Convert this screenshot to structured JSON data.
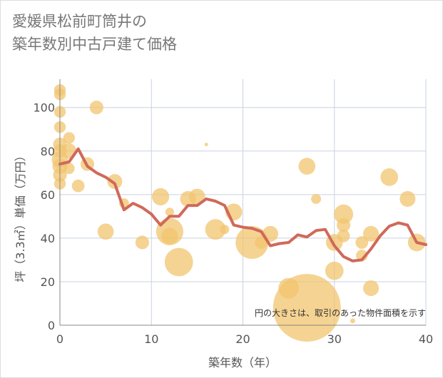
{
  "title_lines": [
    "愛媛県松前町筒井の",
    "築年数別中古戸建て価格"
  ],
  "chart_data": {
    "type": "scatter",
    "title": "愛媛県松前町筒井の築年数別中古戸建て価格",
    "xlabel": "築年数（年）",
    "ylabel": "坪（3.3㎡）単価（万円）",
    "xlim": [
      0,
      40
    ],
    "ylim": [
      0,
      113
    ],
    "x_ticks": [
      0,
      10,
      20,
      30,
      40
    ],
    "y_ticks": [
      0,
      20,
      40,
      60,
      80,
      100
    ],
    "grid": true,
    "annotation": "円の大きさは、取引のあった物件面積を示す",
    "colors": {
      "bubble": "#f2c46d",
      "line": "#d0695a",
      "grid": "#c8d3e0",
      "axis_text": "#555555"
    },
    "bubbles": [
      {
        "x": 0,
        "y": 108,
        "size": 110
      },
      {
        "x": 0,
        "y": 106,
        "size": 110
      },
      {
        "x": 0,
        "y": 98,
        "size": 110
      },
      {
        "x": 0,
        "y": 91,
        "size": 110
      },
      {
        "x": 0,
        "y": 83,
        "size": 150
      },
      {
        "x": 0,
        "y": 80,
        "size": 150
      },
      {
        "x": 0,
        "y": 76,
        "size": 220
      },
      {
        "x": 0,
        "y": 73,
        "size": 180
      },
      {
        "x": 0,
        "y": 69,
        "size": 150
      },
      {
        "x": 0,
        "y": 65,
        "size": 110
      },
      {
        "x": 1,
        "y": 86,
        "size": 110
      },
      {
        "x": 1,
        "y": 80,
        "size": 180
      },
      {
        "x": 1,
        "y": 72,
        "size": 100
      },
      {
        "x": 2,
        "y": 64,
        "size": 130
      },
      {
        "x": 3,
        "y": 74,
        "size": 150
      },
      {
        "x": 4,
        "y": 100,
        "size": 150
      },
      {
        "x": 5,
        "y": 43,
        "size": 210
      },
      {
        "x": 6,
        "y": 66,
        "size": 180
      },
      {
        "x": 7,
        "y": 56,
        "size": 80
      },
      {
        "x": 9,
        "y": 38,
        "size": 150
      },
      {
        "x": 11,
        "y": 59,
        "size": 240
      },
      {
        "x": 12,
        "y": 52,
        "size": 60
      },
      {
        "x": 12,
        "y": 43,
        "size": 600
      },
      {
        "x": 12,
        "y": 41,
        "size": 220
      },
      {
        "x": 13,
        "y": 29,
        "size": 650
      },
      {
        "x": 14,
        "y": 58,
        "size": 200
      },
      {
        "x": 15,
        "y": 59,
        "size": 210
      },
      {
        "x": 16,
        "y": 83,
        "size": 10
      },
      {
        "x": 17,
        "y": 44,
        "size": 340
      },
      {
        "x": 18,
        "y": 44,
        "size": 70
      },
      {
        "x": 19,
        "y": 52,
        "size": 230
      },
      {
        "x": 21,
        "y": 38,
        "size": 870
      },
      {
        "x": 22,
        "y": 38,
        "size": 130
      },
      {
        "x": 23,
        "y": 42,
        "size": 200
      },
      {
        "x": 25,
        "y": 17,
        "size": 340
      },
      {
        "x": 27,
        "y": 8,
        "size": 3700
      },
      {
        "x": 27,
        "y": 73,
        "size": 230
      },
      {
        "x": 28,
        "y": 58,
        "size": 80
      },
      {
        "x": 30,
        "y": 38,
        "size": 230
      },
      {
        "x": 30,
        "y": 25,
        "size": 270
      },
      {
        "x": 31,
        "y": 51,
        "size": 300
      },
      {
        "x": 31,
        "y": 46,
        "size": 150
      },
      {
        "x": 31,
        "y": 41,
        "size": 130
      },
      {
        "x": 32,
        "y": 2,
        "size": 20
      },
      {
        "x": 33,
        "y": 38,
        "size": 130
      },
      {
        "x": 33,
        "y": 32,
        "size": 110
      },
      {
        "x": 34,
        "y": 42,
        "size": 200
      },
      {
        "x": 34,
        "y": 17,
        "size": 200
      },
      {
        "x": 36,
        "y": 68,
        "size": 250
      },
      {
        "x": 38,
        "y": 58,
        "size": 200
      },
      {
        "x": 39,
        "y": 38,
        "size": 250
      }
    ],
    "trend": {
      "x": [
        0,
        1,
        2,
        3,
        4,
        5,
        6,
        7,
        8,
        9,
        10,
        11,
        12,
        13,
        14,
        15,
        16,
        17,
        18,
        19,
        20,
        21,
        22,
        23,
        24,
        25,
        26,
        27,
        28,
        29,
        30,
        31,
        32,
        33,
        34,
        35,
        36,
        37,
        38,
        39,
        40
      ],
      "y": [
        74,
        75,
        81,
        73,
        70,
        68,
        65,
        53,
        56,
        54,
        51,
        46,
        50,
        50,
        55,
        55,
        58,
        57,
        55,
        46,
        45,
        44.5,
        43,
        36.5,
        37.5,
        38,
        41.5,
        40.5,
        43.5,
        44,
        36.5,
        31.5,
        29.5,
        30,
        35,
        41,
        45.5,
        47,
        46,
        38,
        37
      ]
    }
  }
}
